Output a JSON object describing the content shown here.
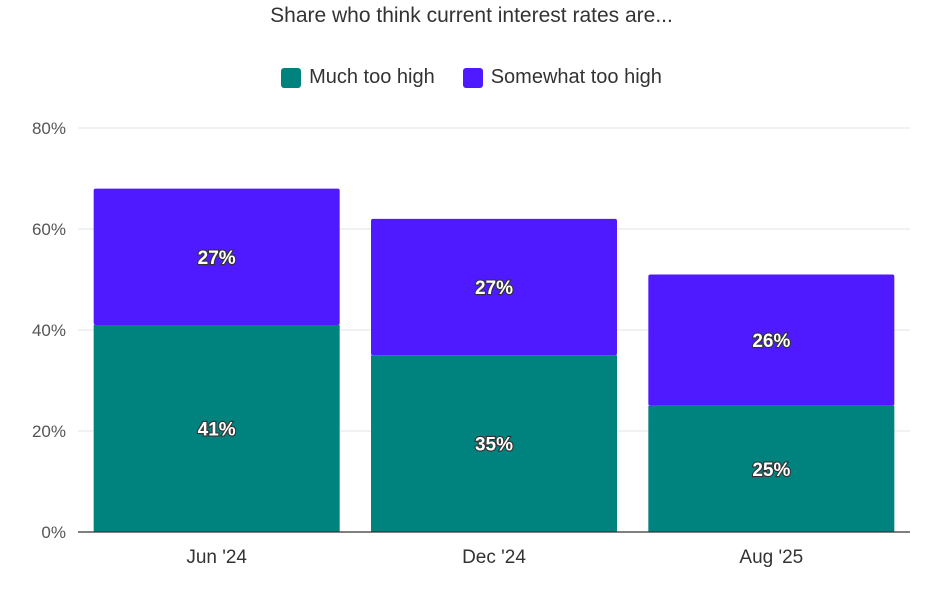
{
  "chart_data": {
    "type": "bar",
    "stacked": true,
    "title": "Share who think current interest rates are...",
    "categories": [
      "Jun '24",
      "Dec '24",
      "Aug '25"
    ],
    "series": [
      {
        "name": "Much too high",
        "values": [
          41,
          35,
          25
        ],
        "labels": [
          "41%",
          "35%",
          "25%"
        ],
        "color": "#00827f"
      },
      {
        "name": "Somewhat too high",
        "values": [
          27,
          27,
          26
        ],
        "labels": [
          "27%",
          "27%",
          "26%"
        ],
        "color": "#4f1aff"
      }
    ],
    "ylim": [
      0,
      80
    ],
    "yticks": [
      0,
      20,
      40,
      60,
      80
    ],
    "ytick_labels": [
      "0%",
      "20%",
      "40%",
      "60%",
      "80%"
    ],
    "grid": true,
    "legend": "top-center"
  }
}
